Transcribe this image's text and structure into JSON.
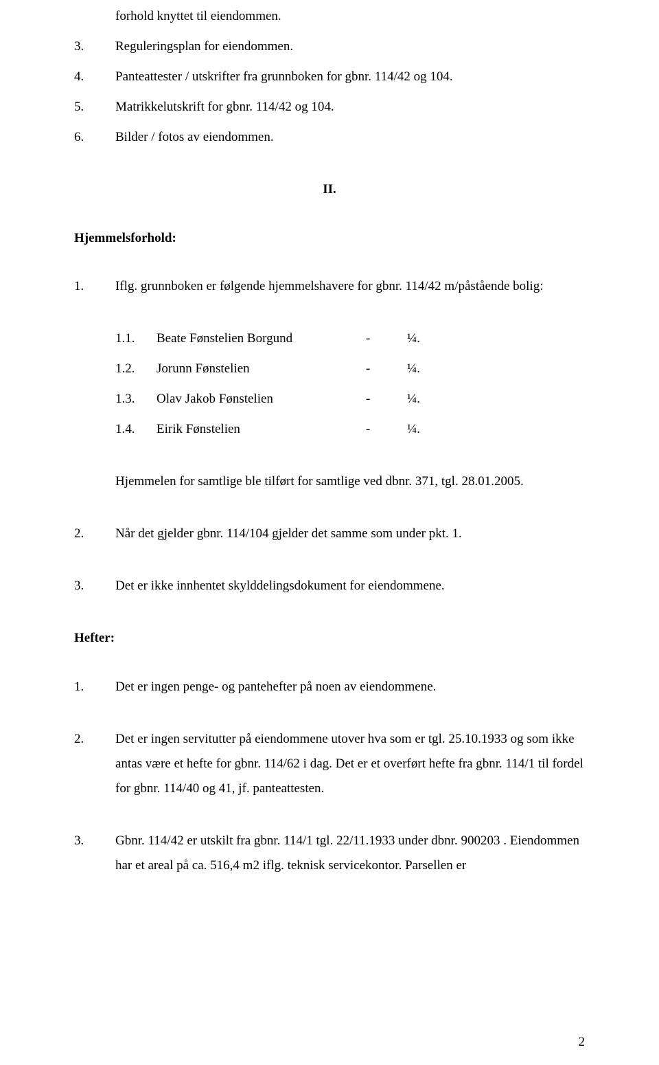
{
  "top_items": [
    {
      "num": "",
      "text": "forhold knyttet til eiendommen."
    },
    {
      "num": "3.",
      "text": "Reguleringsplan for eiendommen."
    },
    {
      "num": "4.",
      "text": "Panteattester / utskrifter fra grunnboken for gbnr. 114/42 og 104."
    },
    {
      "num": "5.",
      "text": "Matrikkelutskrift for gbnr. 114/42 og 104."
    },
    {
      "num": "6.",
      "text": "Bilder / fotos av eiendommen."
    }
  ],
  "section_num": "II.",
  "section1_title": "Hjemmelsforhold:",
  "item1_num": "1.",
  "item1_text": "Iflg. grunnboken er følgende hjemmelshavere for gbnr. 114/42 m/påstående bolig:",
  "owners": [
    {
      "num": "1.1.",
      "name": "Beate Fønstelien Borgund",
      "dash": "-",
      "share": "¼."
    },
    {
      "num": "1.2.",
      "name": "Jorunn Fønstelien",
      "dash": "-",
      "share": "¼."
    },
    {
      "num": "1.3.",
      "name": "Olav Jakob Fønstelien",
      "dash": "-",
      "share": "¼."
    },
    {
      "num": "1.4.",
      "name": "Eirik Fønstelien",
      "dash": "-",
      "share": "¼."
    }
  ],
  "hjemmelen_text": "Hjemmelen for samtlige ble tilført for samtlige ved dbnr. 371, tgl. 28.01.2005.",
  "item2_num": "2.",
  "item2_text": "Når det gjelder gbnr. 114/104 gjelder det samme som under pkt. 1.",
  "item3_num": "3.",
  "item3_text": "Det er ikke innhentet skylddelingsdokument for eiendommene.",
  "section2_title": "Hefter:",
  "hefter": [
    {
      "num": "1.",
      "text": "Det er ingen penge- og pantehefter på noen av eiendommene."
    },
    {
      "num": "2.",
      "text": "Det er ingen servitutter på eiendommene utover hva som er tgl. 25.10.1933 og som ikke antas være et hefte for gbnr. 114/62 i dag. Det er et overført hefte fra gbnr. 114/1 til fordel for gbnr. 114/40 og 41, jf. panteattesten."
    },
    {
      "num": "3.",
      "text": "Gbnr. 114/42 er utskilt fra gbnr. 114/1 tgl. 22/11.1933 under dbnr. 900203 . Eiendommen har et areal på ca. 516,4 m2 iflg. teknisk servicekontor. Parsellen er"
    }
  ],
  "page_number": "2"
}
